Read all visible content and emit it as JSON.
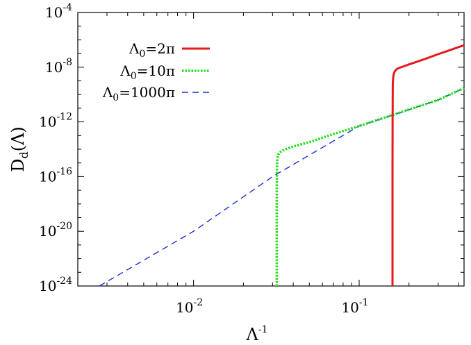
{
  "chart_data": {
    "type": "line",
    "xlabel": {
      "base": "Λ",
      "superscript": "-1"
    },
    "ylabel": {
      "base": "D",
      "subscript": "d",
      "suffix": "(Λ)"
    },
    "xscale": "log",
    "yscale": "log",
    "xlim": [
      0.002,
      0.43
    ],
    "ylim": [
      1e-24,
      0.0001
    ],
    "x_ticks": [
      {
        "value": 0.01,
        "base": "10",
        "exp": "-2"
      },
      {
        "value": 0.1,
        "base": "10",
        "exp": "-1"
      }
    ],
    "y_ticks": [
      {
        "value": 0.0001,
        "base": "10",
        "exp": "-4"
      },
      {
        "value": 1e-08,
        "base": "10",
        "exp": "-8"
      },
      {
        "value": 1e-12,
        "base": "10",
        "exp": "-12"
      },
      {
        "value": 1e-16,
        "base": "10",
        "exp": "-16"
      },
      {
        "value": 1e-20,
        "base": "10",
        "exp": "-20"
      },
      {
        "value": 1e-24,
        "base": "10",
        "exp": "-24"
      }
    ],
    "legend_position": "top-left",
    "grid": false,
    "series": [
      {
        "name": "Λ0=2π",
        "label_base": "Λ",
        "label_sub": "0",
        "label_rest": "=2π",
        "color": "#e8181c",
        "style": "solid",
        "x": [
          0.159,
          0.159,
          0.1592,
          0.1596,
          0.1603,
          0.1615,
          0.164,
          0.168,
          0.175,
          0.185,
          0.2,
          0.25,
          0.3,
          0.35,
          0.4,
          0.43
        ],
        "y": [
          1e-24,
          1e-16,
          1e-12,
          5e-10,
          1.5e-09,
          3e-09,
          5e-09,
          7e-09,
          9e-09,
          1.15e-08,
          1.6e-08,
          4e-08,
          9e-08,
          1.7e-07,
          3e-07,
          4e-07
        ]
      },
      {
        "name": "Λ0=10π",
        "label_base": "Λ",
        "label_sub": "0",
        "label_rest": "=10π",
        "color": "#22e01c",
        "style": "dotted",
        "x": [
          0.0318,
          0.0318,
          0.0319,
          0.0321,
          0.0325,
          0.0333,
          0.0345,
          0.036,
          0.04,
          0.05,
          0.07,
          0.1,
          0.15,
          0.2,
          0.3,
          0.43
        ],
        "y": [
          1e-24,
          1e-17,
          5e-16,
          2e-15,
          4e-15,
          6e-15,
          8e-15,
          1e-14,
          1.6e-14,
          3.3e-14,
          1.3e-13,
          5e-13,
          2.5e-12,
          8e-12,
          4e-11,
          3e-10
        ]
      },
      {
        "name": "Λ0=1000π",
        "label_base": "Λ",
        "label_sub": "0",
        "label_rest": "=1000π",
        "color": "#1a2dd6",
        "style": "dashed",
        "x": [
          0.0027,
          0.01,
          0.03,
          0.1,
          0.3,
          0.43
        ],
        "y": [
          1e-24,
          1e-20,
          1e-16,
          5e-13,
          4e-11,
          3e-10
        ]
      }
    ]
  }
}
